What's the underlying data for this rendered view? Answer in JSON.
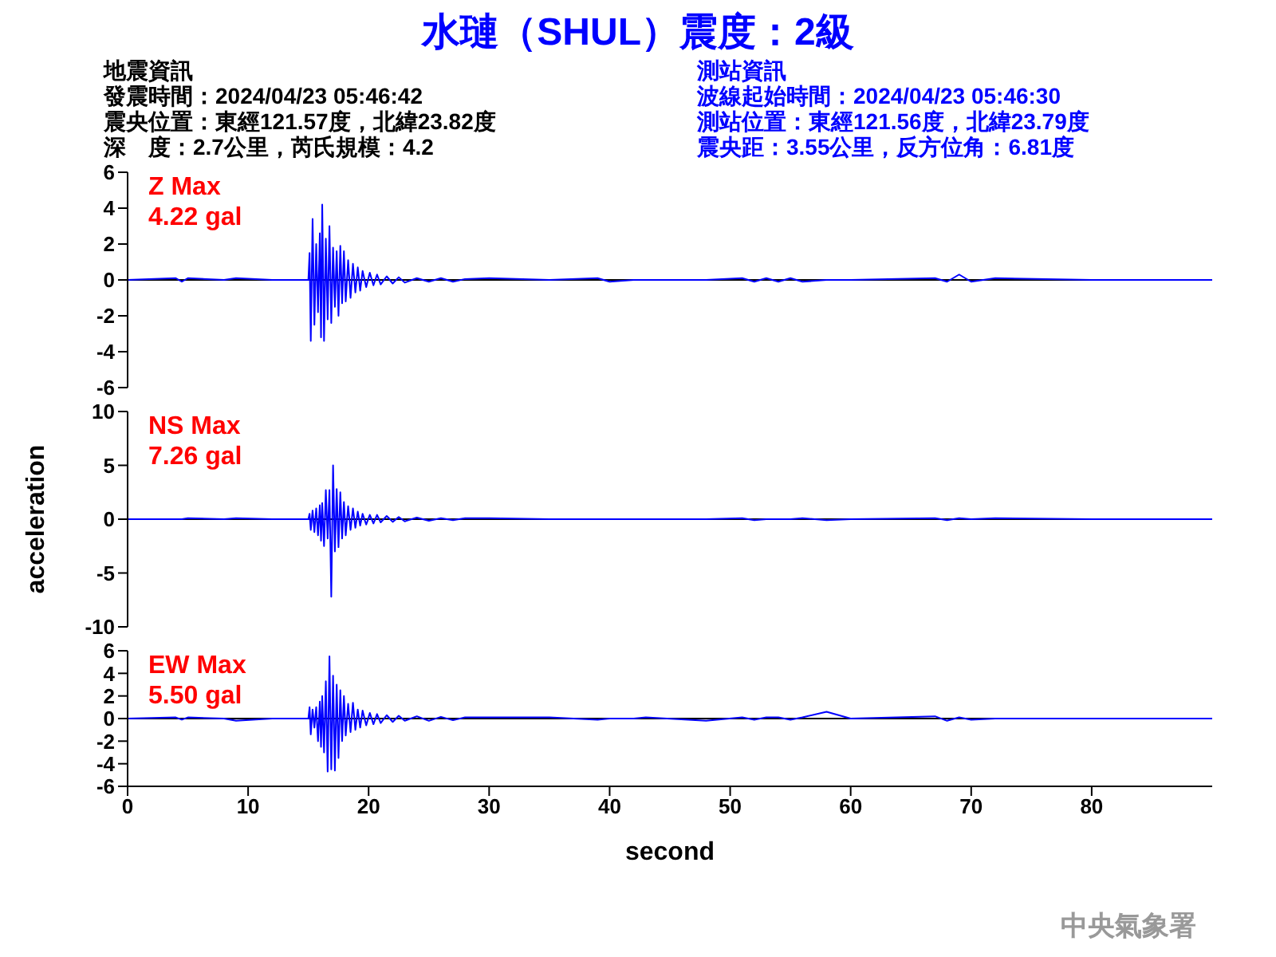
{
  "chart_data": [
    {
      "type": "other",
      "title": "水璉（SHUL）震度：2級",
      "annotations": [
        "地震資訊",
        "發震時間：2024/04/23 05:46:42",
        "震央位置：東經121.57度，北緯23.82度",
        "深　度：2.7公里，芮氏規模：4.2",
        "測站資訊",
        "波線起始時間：2024/04/23 05:46:30",
        "測站位置：東經121.56度，北緯23.79度",
        "震央距：3.55公里，反方位角：6.81度"
      ]
    },
    {
      "type": "line",
      "xlim": [
        0,
        90
      ],
      "ylim": [
        -6,
        6
      ],
      "yticks": [
        -6,
        -4,
        -2,
        0,
        2,
        4,
        6
      ],
      "tick_labels": "y",
      "ref_lines": [
        {
          "axis": "y",
          "value": 0,
          "color": "#000000"
        }
      ],
      "annotations": [
        "Z Max",
        "4.22 gal"
      ],
      "x": [
        0,
        4,
        4.5,
        5,
        8,
        9,
        12,
        14.9,
        15.0,
        15.1,
        15.2,
        15.35,
        15.5,
        15.65,
        15.8,
        15.95,
        16.05,
        16.15,
        16.3,
        16.45,
        16.6,
        16.75,
        16.9,
        17.05,
        17.2,
        17.35,
        17.5,
        17.65,
        17.8,
        17.95,
        18.1,
        18.3,
        18.5,
        18.7,
        18.9,
        19.1,
        19.3,
        19.5,
        19.8,
        20.1,
        20.4,
        20.7,
        21,
        21.5,
        22,
        22.5,
        23,
        24,
        25,
        26,
        27,
        28,
        30,
        35,
        39,
        40,
        42,
        43,
        48,
        51,
        52,
        53,
        54,
        55,
        56,
        58,
        60,
        67,
        68,
        69,
        70,
        72,
        80,
        90
      ],
      "series": [
        {
          "color": "#0000ff",
          "values": [
            0,
            0.1,
            -0.1,
            0.1,
            0,
            0.1,
            0,
            0,
            0,
            1.5,
            -3.4,
            3.4,
            -2.5,
            2.0,
            -1.8,
            2.6,
            -3.2,
            4.2,
            -3.4,
            2.3,
            -2.2,
            3.0,
            -2.4,
            1.8,
            -1.5,
            1.6,
            -2.0,
            1.9,
            -1.3,
            1.6,
            -1.2,
            1.1,
            -1.0,
            0.9,
            -0.7,
            0.7,
            -0.6,
            0.5,
            -0.4,
            0.4,
            -0.3,
            0.3,
            -0.25,
            0.2,
            -0.2,
            0.15,
            -0.15,
            0.1,
            -0.1,
            0.1,
            -0.1,
            0.05,
            0.1,
            0,
            0.1,
            -0.1,
            0,
            0,
            0,
            0.1,
            -0.1,
            0.1,
            -0.1,
            0.1,
            -0.1,
            0,
            0,
            0.1,
            -0.1,
            0.3,
            -0.1,
            0.1,
            0,
            0
          ]
        }
      ]
    },
    {
      "type": "line",
      "xlim": [
        0,
        90
      ],
      "ylim": [
        -10,
        10
      ],
      "yticks": [
        -10,
        -5,
        0,
        5,
        10
      ],
      "tick_labels": "y",
      "ylabel": "acceleration",
      "ref_lines": [
        {
          "axis": "y",
          "value": 0,
          "color": "#000000"
        }
      ],
      "annotations": [
        "NS Max",
        "7.26 gal"
      ],
      "x": [
        0,
        4,
        4.5,
        5,
        8,
        9,
        12,
        14.9,
        15.0,
        15.1,
        15.2,
        15.35,
        15.5,
        15.65,
        15.8,
        15.95,
        16.05,
        16.15,
        16.3,
        16.45,
        16.6,
        16.75,
        16.9,
        17.05,
        17.2,
        17.35,
        17.5,
        17.65,
        17.8,
        17.95,
        18.1,
        18.3,
        18.5,
        18.7,
        18.9,
        19.1,
        19.3,
        19.5,
        19.8,
        20.1,
        20.4,
        20.7,
        21,
        21.5,
        22,
        22.5,
        23,
        24,
        25,
        26,
        27,
        28,
        30,
        35,
        39,
        40,
        42,
        43,
        48,
        51,
        52,
        53,
        54,
        55,
        56,
        58,
        60,
        67,
        68,
        69,
        70,
        72,
        80,
        90
      ],
      "series": [
        {
          "color": "#0000ff",
          "values": [
            0,
            0,
            0,
            0.1,
            0,
            0.1,
            0,
            0,
            0,
            0.5,
            -1.0,
            0.8,
            -1.2,
            1.0,
            -1.5,
            1.3,
            -2.0,
            1.5,
            -2.5,
            2.7,
            -1.8,
            2.7,
            -7.2,
            5.0,
            -3.0,
            2.8,
            -2.6,
            2.5,
            -1.8,
            1.6,
            -1.5,
            1.2,
            -1.0,
            1.0,
            -0.8,
            0.7,
            -0.6,
            0.5,
            -0.5,
            0.4,
            -0.4,
            0.4,
            -0.3,
            0.3,
            -0.25,
            0.2,
            -0.2,
            0.15,
            -0.15,
            0.1,
            -0.1,
            0.1,
            0.1,
            0,
            0,
            0,
            0,
            0,
            0,
            0.1,
            -0.1,
            0,
            0,
            0,
            0.1,
            -0.1,
            0,
            0.1,
            -0.1,
            0.1,
            0,
            0.1,
            0,
            0
          ]
        }
      ]
    },
    {
      "type": "line",
      "xlim": [
        0,
        90
      ],
      "ylim": [
        -6,
        6
      ],
      "yticks": [
        -6,
        -4,
        -2,
        0,
        2,
        4,
        6
      ],
      "xticks": [
        0,
        10,
        20,
        30,
        40,
        50,
        60,
        70,
        80
      ],
      "xlabel": "second",
      "ref_lines": [
        {
          "axis": "y",
          "value": 0,
          "color": "#000000"
        }
      ],
      "annotations": [
        "EW Max",
        "5.50 gal",
        "中央氣象署"
      ],
      "x": [
        0,
        4,
        4.5,
        5,
        8,
        9,
        12,
        14.9,
        15.0,
        15.1,
        15.2,
        15.35,
        15.5,
        15.65,
        15.8,
        15.95,
        16.05,
        16.15,
        16.3,
        16.45,
        16.6,
        16.75,
        16.9,
        17.05,
        17.2,
        17.35,
        17.5,
        17.65,
        17.8,
        17.95,
        18.1,
        18.3,
        18.5,
        18.7,
        18.9,
        19.1,
        19.3,
        19.5,
        19.8,
        20.1,
        20.4,
        20.7,
        21,
        21.5,
        22,
        22.5,
        23,
        24,
        25,
        26,
        27,
        28,
        30,
        35,
        39,
        40,
        42,
        43,
        48,
        51,
        52,
        53,
        54,
        55,
        56,
        58,
        60,
        67,
        68,
        69,
        70,
        72,
        80,
        90
      ],
      "series": [
        {
          "color": "#0000ff",
          "values": [
            0,
            0.1,
            -0.1,
            0.1,
            0,
            -0.2,
            0,
            0,
            0,
            1.0,
            -1.4,
            0.8,
            -0.8,
            1.0,
            -2.0,
            1.5,
            -2.5,
            2.0,
            -3.0,
            3.3,
            -4.7,
            5.5,
            -4.5,
            3.8,
            -4.6,
            3.0,
            -3.5,
            2.5,
            -2.0,
            2.0,
            -1.5,
            1.3,
            -1.2,
            1.4,
            -1.0,
            0.8,
            -0.8,
            0.7,
            -0.6,
            0.5,
            -0.5,
            0.4,
            -0.4,
            0.3,
            -0.3,
            0.25,
            -0.2,
            0.2,
            -0.2,
            0.15,
            -0.15,
            0.1,
            0.1,
            0.1,
            -0.1,
            0,
            0,
            0.1,
            -0.2,
            0.1,
            -0.1,
            0.1,
            0.1,
            -0.1,
            0.1,
            0.6,
            0,
            0.2,
            -0.2,
            0.1,
            -0.1,
            0,
            0,
            0
          ]
        }
      ]
    }
  ]
}
